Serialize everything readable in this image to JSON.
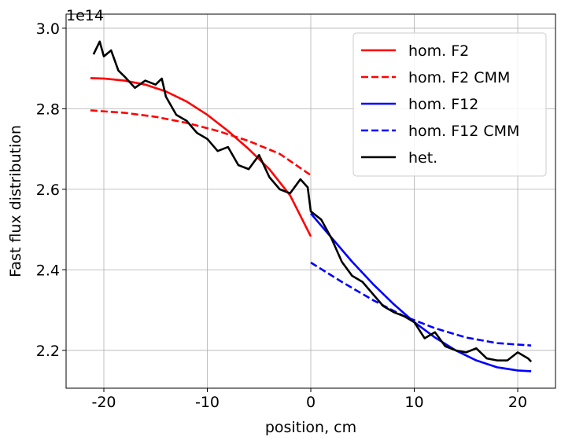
{
  "chart_data": {
    "type": "line",
    "xlabel": "position, cm",
    "ylabel": "Fast flux distribution",
    "y_offset_label": "1e14",
    "xlim": [
      -23.65,
      23.65
    ],
    "ylim": [
      2.106,
      3.035
    ],
    "xticks": [
      -20,
      -10,
      0,
      10,
      20
    ],
    "yticks": [
      2.2,
      2.4,
      2.6,
      2.8,
      {
        "value": 3,
        "label": "3.0"
      }
    ],
    "grid": true,
    "legend": "upper right",
    "series": [
      {
        "name": "hom. F2",
        "color": "#ff0000",
        "dashed": false,
        "x": [
          -21.3,
          -20,
          -18,
          -16,
          -14,
          -12,
          -10,
          -8,
          -6,
          -4,
          -2,
          0
        ],
        "values": [
          2.876,
          2.875,
          2.87,
          2.86,
          2.843,
          2.818,
          2.785,
          2.745,
          2.7,
          2.65,
          2.585,
          2.483
        ]
      },
      {
        "name": "hom. F2 CMM",
        "color": "#ff0000",
        "dashed": true,
        "x": [
          -21.3,
          -18,
          -15,
          -12,
          -9,
          -6,
          -3,
          0
        ],
        "values": [
          2.796,
          2.79,
          2.78,
          2.765,
          2.745,
          2.72,
          2.688,
          2.635
        ]
      },
      {
        "name": "hom. F12",
        "color": "#0000ff",
        "dashed": false,
        "x": [
          0,
          2,
          4,
          6,
          8,
          10,
          12,
          14,
          16,
          18,
          20,
          21.3
        ],
        "values": [
          2.54,
          2.48,
          2.42,
          2.365,
          2.315,
          2.27,
          2.232,
          2.2,
          2.175,
          2.158,
          2.15,
          2.148
        ]
      },
      {
        "name": "hom. F12 CMM",
        "color": "#0000ff",
        "dashed": true,
        "x": [
          0,
          3,
          6,
          9,
          12,
          15,
          18,
          21.3
        ],
        "values": [
          2.418,
          2.37,
          2.325,
          2.285,
          2.255,
          2.232,
          2.218,
          2.212
        ]
      },
      {
        "name": "het.",
        "color": "#000000",
        "dashed": false,
        "x": [
          -21,
          -20.4,
          -20,
          -19.3,
          -18.6,
          -18,
          -17,
          -16,
          -15,
          -14.4,
          -14,
          -13,
          -12,
          -11,
          -10,
          -9,
          -8,
          -7,
          -6,
          -5,
          -4,
          -3,
          -2,
          -1,
          -0.3,
          0,
          1,
          2,
          3,
          4,
          5,
          6,
          7,
          8,
          9,
          10,
          11,
          12,
          13,
          14,
          15,
          16,
          17,
          18,
          19,
          20,
          21,
          21.3
        ],
        "values": [
          2.935,
          2.967,
          2.93,
          2.945,
          2.895,
          2.88,
          2.852,
          2.87,
          2.86,
          2.875,
          2.83,
          2.785,
          2.77,
          2.74,
          2.725,
          2.695,
          2.705,
          2.66,
          2.65,
          2.685,
          2.63,
          2.6,
          2.59,
          2.625,
          2.605,
          2.545,
          2.525,
          2.478,
          2.42,
          2.385,
          2.37,
          2.34,
          2.31,
          2.295,
          2.285,
          2.27,
          2.23,
          2.245,
          2.21,
          2.2,
          2.195,
          2.205,
          2.18,
          2.175,
          2.175,
          2.195,
          2.18,
          2.172
        ]
      }
    ]
  }
}
